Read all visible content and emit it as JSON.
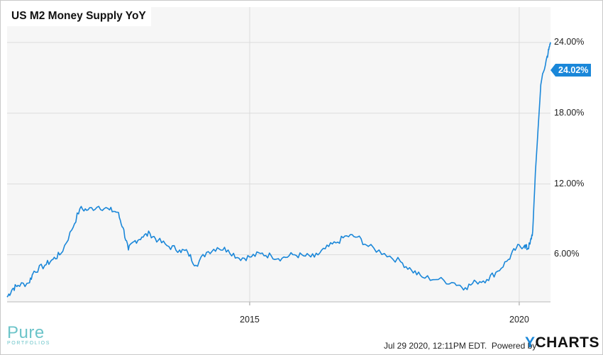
{
  "chart_data": {
    "type": "line",
    "title": "US M2 Money Supply YoY",
    "xlabel": "",
    "ylabel": "",
    "x_ticks": [
      "2015",
      "2020"
    ],
    "y_ticks": [
      "6.00%",
      "12.00%",
      "18.00%",
      "24.00%"
    ],
    "x_range": [
      2010.5,
      2020.58
    ],
    "ylim": [
      2.0,
      27.0
    ],
    "grid": true,
    "last_value_label": "24.02%",
    "series": [
      {
        "color": "#1a87d9",
        "x": [
          2010.5,
          2010.6,
          2010.7,
          2010.9,
          2011.0,
          2011.2,
          2011.35,
          2011.5,
          2011.7,
          2011.85,
          2012.0,
          2012.2,
          2012.4,
          2012.55,
          2012.65,
          2012.75,
          2012.85,
          2013.0,
          2013.15,
          2013.3,
          2013.5,
          2013.7,
          2013.85,
          2014.0,
          2014.2,
          2014.4,
          2014.6,
          2014.8,
          2015.0,
          2015.2,
          2015.4,
          2015.6,
          2015.8,
          2016.0,
          2016.2,
          2016.4,
          2016.6,
          2016.8,
          2017.0,
          2017.2,
          2017.5,
          2017.8,
          2018.0,
          2018.2,
          2018.5,
          2018.8,
          2019.0,
          2019.2,
          2019.4,
          2019.6,
          2019.8,
          2019.95,
          2020.1,
          2020.15,
          2020.2,
          2020.25,
          2020.3,
          2020.4,
          2020.5,
          2020.55,
          2020.58
        ],
        "values": [
          2.4,
          3.1,
          3.4,
          3.6,
          4.6,
          5.1,
          5.6,
          6.1,
          8.1,
          9.9,
          9.8,
          10.1,
          9.8,
          9.6,
          8.3,
          6.4,
          7.1,
          7.5,
          7.8,
          7.2,
          6.7,
          6.4,
          6.2,
          5.1,
          6.2,
          6.6,
          6.4,
          5.7,
          5.8,
          6.1,
          5.9,
          5.7,
          6.0,
          5.9,
          5.8,
          6.5,
          7.0,
          7.6,
          7.5,
          6.7,
          6.1,
          5.4,
          4.7,
          4.1,
          3.9,
          3.6,
          3.2,
          3.7,
          3.9,
          4.6,
          5.6,
          6.6,
          6.8,
          6.5,
          6.9,
          8.0,
          13.0,
          20.4,
          22.5,
          23.4,
          24.02
        ]
      }
    ]
  },
  "footer": {
    "logo_main": "Pure",
    "logo_sub": "PORTFOLIOS",
    "timestamp_text": "Jul 29 2020, 12:11PM EDT.",
    "powered_by": "Powered by",
    "ycharts_y": "Y",
    "ycharts_rest": "CHARTS"
  }
}
